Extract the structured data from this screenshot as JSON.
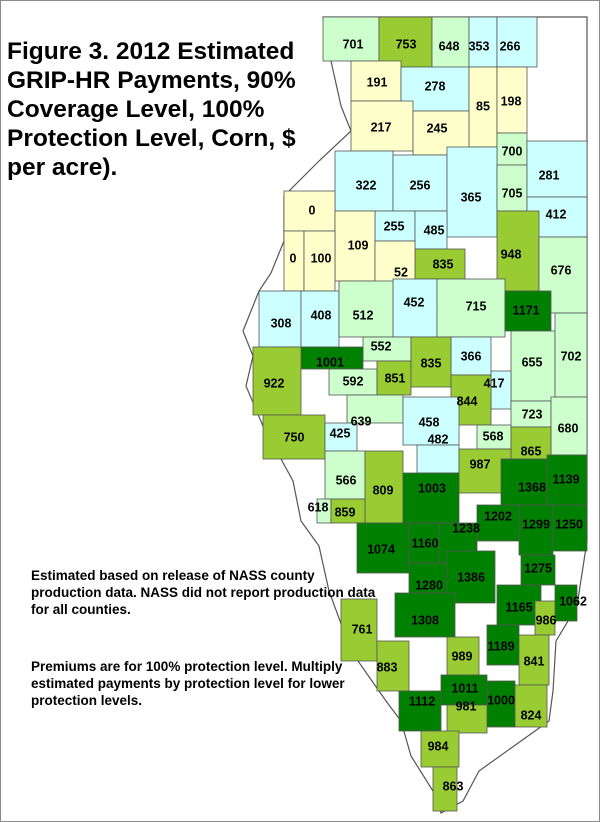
{
  "title": "Figure 3. 2012 Estimated GRIP-HR Payments, 90% Coverage Level, 100% Protection Level, Corn, $ per acre).",
  "notes": {
    "production": "Estimated based on release of NASS county production data.  NASS did not report production data for all counties.",
    "premiums": "Premiums are for 100% protection level. Multiply estimated payments by protection level for lower protection levels."
  },
  "colors": {
    "class_0_199": "#ffffcc",
    "class_200_499": "#ccffff",
    "class_500_799": "#ccffcc",
    "class_800_999": "#99cc33",
    "class_1000_plus": "#008000",
    "no_data": "#ffffff",
    "border": "#555555"
  },
  "counties": [
    {
      "value": "701"
    },
    {
      "value": "753"
    },
    {
      "value": "648"
    },
    {
      "value": "353"
    },
    {
      "value": "266"
    },
    {
      "value": "191"
    },
    {
      "value": "278"
    },
    {
      "value": "85"
    },
    {
      "value": "198"
    },
    {
      "value": "217"
    },
    {
      "value": "245"
    },
    {
      "value": "700"
    },
    {
      "value": "322"
    },
    {
      "value": "256"
    },
    {
      "value": "365"
    },
    {
      "value": "705"
    },
    {
      "value": "281"
    },
    {
      "value": "0"
    },
    {
      "value": "412"
    },
    {
      "value": "255"
    },
    {
      "value": "485"
    },
    {
      "value": "109"
    },
    {
      "value": "0"
    },
    {
      "value": "100"
    },
    {
      "value": "948"
    },
    {
      "value": "835"
    },
    {
      "value": "52"
    },
    {
      "value": "676"
    },
    {
      "value": "452"
    },
    {
      "value": "715"
    },
    {
      "value": "1171"
    },
    {
      "value": "308"
    },
    {
      "value": "408"
    },
    {
      "value": "512"
    },
    {
      "value": "552"
    },
    {
      "value": "1001"
    },
    {
      "value": "366"
    },
    {
      "value": "655"
    },
    {
      "value": "702"
    },
    {
      "value": "922"
    },
    {
      "value": "592"
    },
    {
      "value": "851"
    },
    {
      "value": "835"
    },
    {
      "value": "417"
    },
    {
      "value": "844"
    },
    {
      "value": "639"
    },
    {
      "value": "723"
    },
    {
      "value": "750"
    },
    {
      "value": "425"
    },
    {
      "value": "458"
    },
    {
      "value": "482"
    },
    {
      "value": "568"
    },
    {
      "value": "680"
    },
    {
      "value": "865"
    },
    {
      "value": "987"
    },
    {
      "value": "566"
    },
    {
      "value": "1139"
    },
    {
      "value": "1368"
    },
    {
      "value": "809"
    },
    {
      "value": "1003"
    },
    {
      "value": "618"
    },
    {
      "value": "859"
    },
    {
      "value": "1202"
    },
    {
      "value": "1238"
    },
    {
      "value": "1299"
    },
    {
      "value": "1250"
    },
    {
      "value": "1074"
    },
    {
      "value": "1160"
    },
    {
      "value": "1275"
    },
    {
      "value": "1280"
    },
    {
      "value": "1386"
    },
    {
      "value": "1062"
    },
    {
      "value": "1165"
    },
    {
      "value": "986"
    },
    {
      "value": "761"
    },
    {
      "value": "1308"
    },
    {
      "value": "1189"
    },
    {
      "value": "989"
    },
    {
      "value": "841"
    },
    {
      "value": "883"
    },
    {
      "value": "1011"
    },
    {
      "value": "1112"
    },
    {
      "value": "1000"
    },
    {
      "value": "981"
    },
    {
      "value": "824"
    },
    {
      "value": "984"
    },
    {
      "value": "863"
    }
  ]
}
